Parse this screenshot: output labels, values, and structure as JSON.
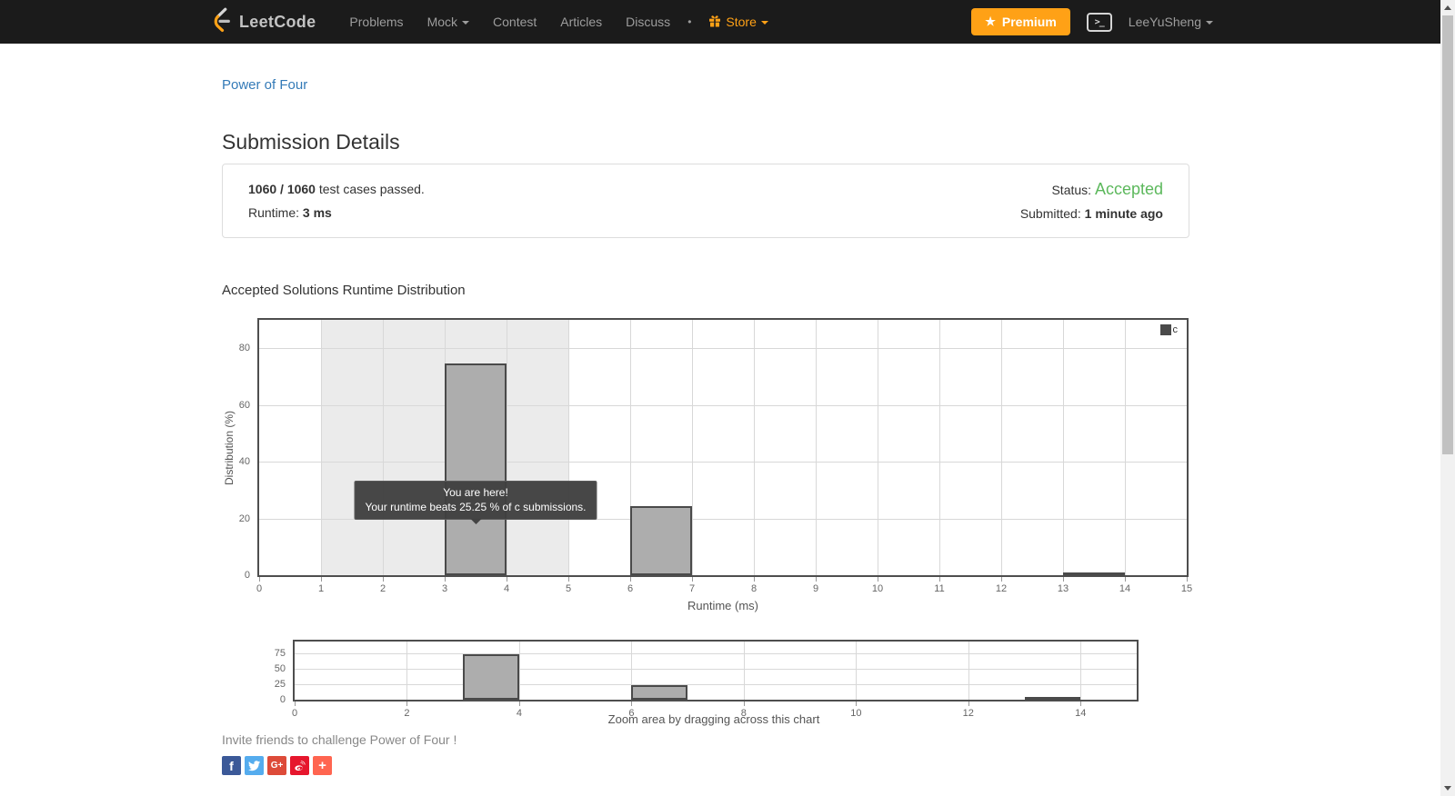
{
  "navbar": {
    "brand": "LeetCode",
    "items": [
      {
        "label": "Problems"
      },
      {
        "label": "Mock"
      },
      {
        "label": "Contest"
      },
      {
        "label": "Articles"
      },
      {
        "label": "Discuss"
      },
      {
        "label": "•"
      },
      {
        "label": "Store"
      }
    ],
    "premium_label": "Premium",
    "premium_star": "★",
    "username": "LeeYuSheng",
    "accent_color": "#ffa116"
  },
  "breadcrumb": {
    "problem_title": "Power of Four"
  },
  "page": {
    "title": "Submission Details"
  },
  "summary": {
    "passed_fraction": "1060 / 1060",
    "passed_text": " test cases passed.",
    "runtime_label": "Runtime: ",
    "runtime_value": "3 ms",
    "status_label": "Status: ",
    "status_value": "Accepted",
    "status_color": "#5cb85c",
    "submitted_label": "Submitted: ",
    "submitted_value": "1 minute ago"
  },
  "chart_section": {
    "title": "Accepted Solutions Runtime Distribution"
  },
  "tooltip": {
    "line1": "You are here!",
    "line2": "Your runtime beats 25.25 % of c submissions."
  },
  "chart_data": [
    {
      "type": "bar",
      "role": "main-distribution",
      "title": "",
      "xlabel": "Runtime (ms)",
      "ylabel": "Distribution (%)",
      "xlim": [
        0,
        15
      ],
      "ylim": [
        0,
        90
      ],
      "xticks": [
        0,
        1,
        2,
        3,
        4,
        5,
        6,
        7,
        8,
        9,
        10,
        11,
        12,
        13,
        14,
        15
      ],
      "yticks": [
        0,
        20,
        40,
        60,
        80
      ],
      "xgrid": [
        1,
        2,
        3,
        4,
        5,
        6,
        7,
        8,
        9,
        10,
        11,
        12,
        13,
        14
      ],
      "grid": true,
      "legend": [
        "c"
      ],
      "legend_position": "top-right",
      "plot_band": {
        "from": 1,
        "to": 5
      },
      "series": [
        {
          "name": "c",
          "bins": [
            {
              "x": 3,
              "width": 1,
              "value": 74.75
            },
            {
              "x": 6,
              "width": 1,
              "value": 24.25
            },
            {
              "x": 13,
              "width": 1,
              "value": 1.0
            }
          ]
        }
      ],
      "bar_color": "#adadad",
      "bar_border_color": "#4a4a4a",
      "band_color": "#ebebeb"
    },
    {
      "type": "bar",
      "role": "navigator",
      "caption": "Zoom area by dragging across this chart",
      "xlim": [
        0,
        15
      ],
      "ylim": [
        0,
        95
      ],
      "xticks": [
        0,
        2,
        4,
        6,
        8,
        10,
        12,
        14
      ],
      "yticks": [
        0,
        25,
        50,
        75
      ],
      "xgrid": [
        2,
        4,
        6,
        8,
        10,
        12,
        14
      ],
      "grid": true,
      "series": [
        {
          "name": "c",
          "bins": [
            {
              "x": 3,
              "width": 1,
              "value": 74.75
            },
            {
              "x": 6,
              "width": 1,
              "value": 24.25
            },
            {
              "x": 13,
              "width": 1,
              "value": 1.0
            }
          ]
        }
      ]
    }
  ],
  "invite": {
    "text": "Invite friends to challenge Power of Four !"
  },
  "share": {
    "icons": [
      {
        "name": "facebook",
        "color": "#3b5998"
      },
      {
        "name": "twitter",
        "color": "#55acee"
      },
      {
        "name": "googleplus",
        "color": "#dd4b39",
        "label": "G+"
      },
      {
        "name": "weibo",
        "color": "#e6162d"
      },
      {
        "name": "addthis",
        "color": "#ff6550",
        "label": "+"
      }
    ]
  }
}
